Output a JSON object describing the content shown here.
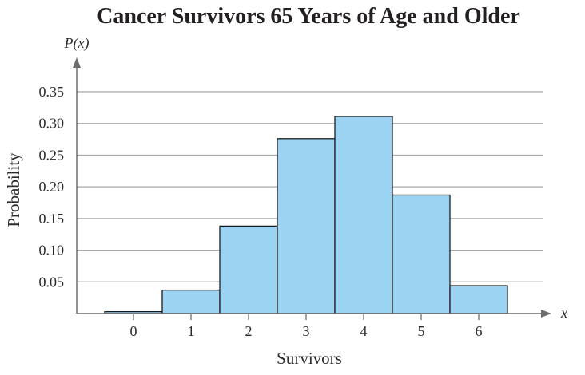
{
  "chart_data": {
    "type": "bar",
    "title": "Cancer Survivors 65 Years of Age and Older",
    "xlabel": "Survivors",
    "ylabel": "Probability",
    "y_axis_symbol": "P(x)",
    "x_axis_symbol": "x",
    "categories": [
      "0",
      "1",
      "2",
      "3",
      "4",
      "5",
      "6"
    ],
    "x": [
      0,
      1,
      2,
      3,
      4,
      5,
      6
    ],
    "values": [
      0.003,
      0.037,
      0.138,
      0.276,
      0.311,
      0.187,
      0.044
    ],
    "ylim": [
      0,
      0.35
    ],
    "yticks": [
      0.05,
      0.1,
      0.15,
      0.2,
      0.25,
      0.3,
      0.35
    ],
    "ytick_labels": [
      "0.05",
      "0.10",
      "0.15",
      "0.20",
      "0.25",
      "0.30",
      "0.35"
    ],
    "grid": true,
    "bar_color": "#9dd3f2"
  }
}
